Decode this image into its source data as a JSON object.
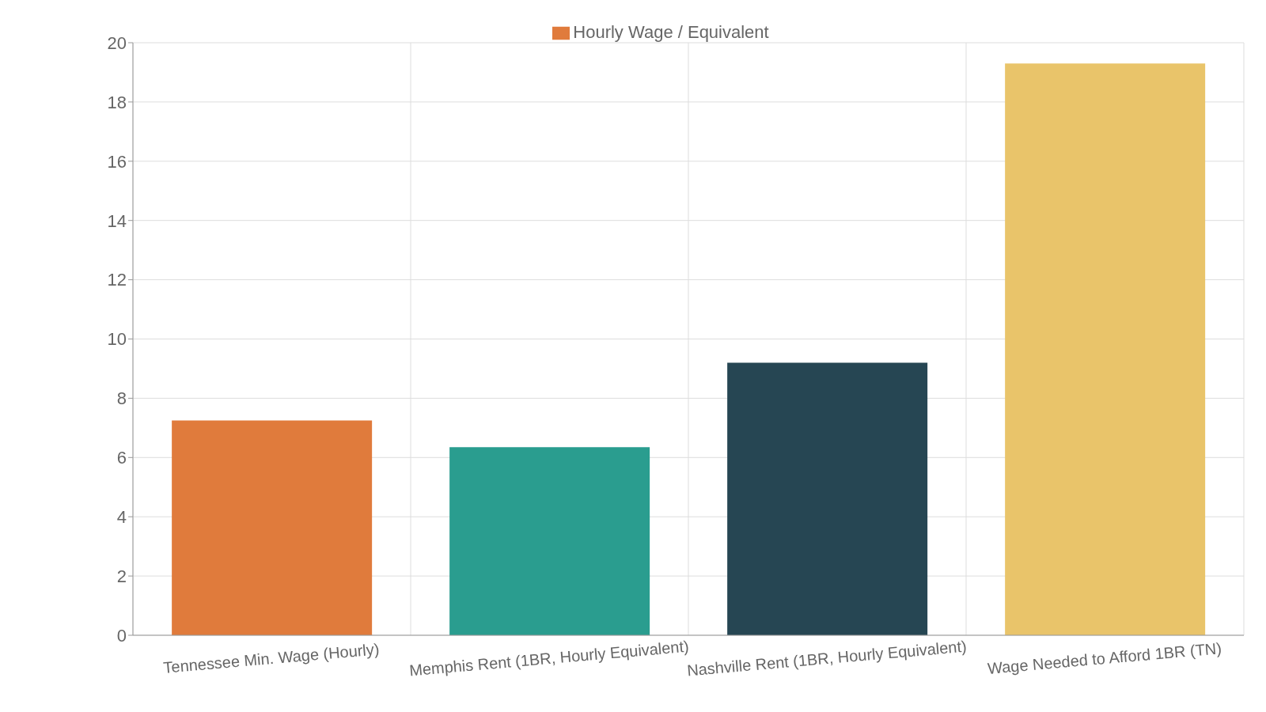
{
  "chart_data": {
    "type": "bar",
    "categories": [
      "Tennessee Min. Wage (Hourly)",
      "Memphis Rent (1BR, Hourly Equivalent)",
      "Nashville Rent (1BR, Hourly Equivalent)",
      "Wage Needed to Afford 1BR (TN)"
    ],
    "series": [
      {
        "name": "Hourly Wage / Equivalent",
        "color": "#e07b3c",
        "colors": [
          "#e07b3c",
          "#2a9d8f",
          "#264653",
          "#e9c46a"
        ],
        "values": [
          7.25,
          6.35,
          9.2,
          19.3
        ]
      }
    ],
    "ylim": [
      0,
      20
    ],
    "yticks": [
      0,
      2,
      4,
      6,
      8,
      10,
      12,
      14,
      16,
      18,
      20
    ],
    "grid": true,
    "legend": "top"
  }
}
